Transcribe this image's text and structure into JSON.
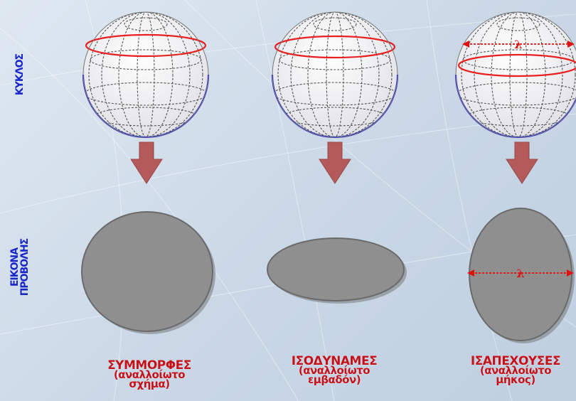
{
  "row_labels": {
    "top": "ΚΥΚΛΟΣ",
    "bottom_line1": "ΕΙΚΟΝΑ",
    "bottom_line2": "ΠΡΟΒΟΛΗΣ"
  },
  "lambda_symbol": "λ",
  "columns": [
    {
      "title": "ΣΥΜΜΟΡΦΕΣ",
      "sub1": "(αναλλοίωτο",
      "sub2": "σχήμα)"
    },
    {
      "title": "ΙΣΟΔΥΝΑΜΕΣ",
      "sub1": "(αναλλοίωτο",
      "sub2": "εμβαδόν)"
    },
    {
      "title": "ΙΣΑΠΕΧΟΥΣΕΣ",
      "sub1": "(αναλλοίωτο",
      "sub2": "μήκος)"
    }
  ],
  "colors": {
    "text_blue": "#1a27c8",
    "text_red": "#c4121a",
    "arrow": "#b55a5a",
    "shape_fill": "#8f8f8f",
    "equator": "#e82020",
    "rim": "#2a2ad0"
  }
}
